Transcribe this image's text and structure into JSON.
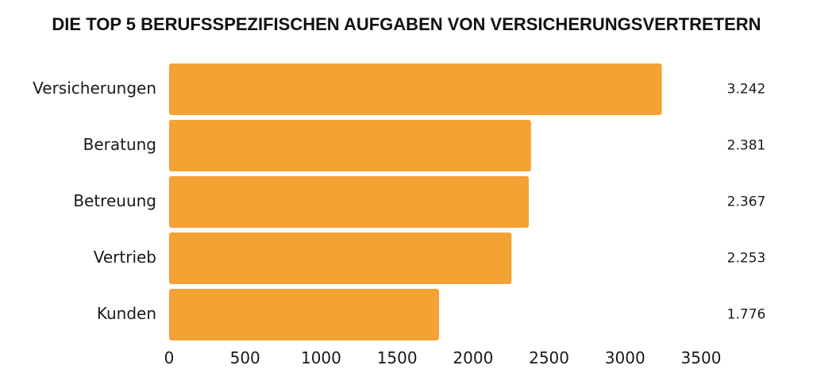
{
  "chart_data": {
    "type": "bar",
    "orientation": "horizontal",
    "title": "DIE TOP 5 BERUFSSPEZIFISCHEN AUFGABEN VON VERSICHERUNGSVERTRETERN",
    "categories": [
      "Versicherungen",
      "Beratung",
      "Betreuung",
      "Vertrieb",
      "Kunden"
    ],
    "values": [
      3242,
      2381,
      2367,
      2253,
      1776
    ],
    "value_labels": [
      "3.242",
      "2.381",
      "2.367",
      "2.253",
      "1.776"
    ],
    "xlim": [
      0,
      3500
    ],
    "xticks": [
      0,
      500,
      1000,
      1500,
      2000,
      2500,
      3000,
      3500
    ],
    "xlabel": "",
    "ylabel": "",
    "grid": false,
    "legend": "none",
    "bar_color": "#F4A233"
  }
}
